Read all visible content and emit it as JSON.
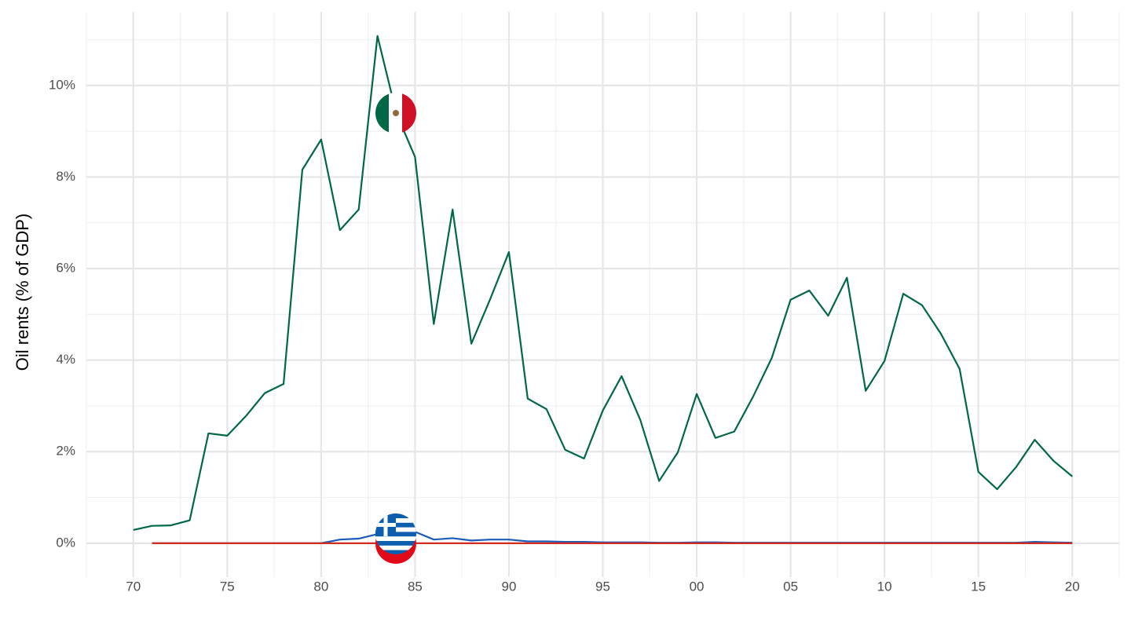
{
  "chart_data": {
    "type": "line",
    "y_label": "Oil rents (% of GDP)",
    "x": [
      1970,
      1971,
      1972,
      1973,
      1974,
      1975,
      1976,
      1977,
      1978,
      1979,
      1980,
      1981,
      1982,
      1983,
      1984,
      1985,
      1986,
      1987,
      1988,
      1989,
      1990,
      1991,
      1992,
      1993,
      1994,
      1995,
      1996,
      1997,
      1998,
      1999,
      2000,
      2001,
      2002,
      2003,
      2004,
      2005,
      2006,
      2007,
      2008,
      2009,
      2010,
      2011,
      2012,
      2013,
      2014,
      2015,
      2016,
      2017,
      2018,
      2019,
      2020
    ],
    "series": [
      {
        "color": "#006847",
        "values": [
          0.29,
          0.38,
          0.39,
          0.5,
          2.4,
          2.35,
          2.78,
          3.28,
          3.48,
          8.16,
          8.82,
          6.84,
          7.29,
          11.08,
          9.4,
          8.44,
          4.79,
          7.29,
          4.36,
          5.33,
          6.36,
          3.16,
          2.93,
          2.04,
          1.85,
          2.9,
          3.65,
          2.69,
          1.36,
          1.99,
          3.26,
          2.3,
          2.44,
          3.2,
          4.05,
          5.32,
          5.52,
          4.97,
          5.8,
          3.33,
          3.98,
          5.45,
          5.2,
          4.58,
          3.81,
          1.56,
          1.18,
          1.66,
          2.26,
          1.8,
          1.46
        ]
      },
      {
        "color": "#1c5cb8",
        "values": [
          null,
          0,
          0,
          0,
          0,
          0,
          0,
          0,
          0,
          0,
          0,
          0.08,
          0.1,
          0.2,
          0.3,
          0.25,
          0.08,
          0.11,
          0.06,
          0.08,
          0.08,
          0.04,
          0.04,
          0.03,
          0.03,
          0.02,
          0.02,
          0.02,
          0.01,
          0.01,
          0.02,
          0.02,
          0.01,
          0.01,
          0.01,
          0.01,
          0.01,
          0.01,
          0.01,
          0.01,
          0.01,
          0.01,
          0.01,
          0.01,
          0.01,
          0.01,
          0.01,
          0.01,
          0.03,
          0.02,
          0.01
        ]
      },
      {
        "color": "#d52b1e",
        "values": [
          null,
          0,
          0,
          0,
          0,
          0,
          0,
          0,
          0,
          0,
          0,
          0,
          0,
          0,
          0,
          0,
          0,
          0,
          0,
          0,
          0,
          0,
          0,
          0,
          0,
          0,
          0,
          0,
          0,
          0,
          0,
          0,
          0,
          0,
          0,
          0,
          0,
          0,
          0,
          0,
          0,
          0,
          0,
          0,
          0,
          0,
          0,
          0,
          0,
          0,
          0
        ]
      }
    ],
    "xlim": [
      1967.5,
      2022.5
    ],
    "ylim": [
      -0.74,
      11.61
    ],
    "xticks": [
      {
        "value": 1970,
        "label": "70"
      },
      {
        "value": 1975,
        "label": "75"
      },
      {
        "value": 1980,
        "label": "80"
      },
      {
        "value": 1985,
        "label": "85"
      },
      {
        "value": 1990,
        "label": "90"
      },
      {
        "value": 1995,
        "label": "95"
      },
      {
        "value": 2000,
        "label": "00"
      },
      {
        "value": 2005,
        "label": "05"
      },
      {
        "value": 2010,
        "label": "10"
      },
      {
        "value": 2015,
        "label": "15"
      },
      {
        "value": 2020,
        "label": "20"
      }
    ],
    "yticks": [
      {
        "value": 0,
        "label": "0%"
      },
      {
        "value": 2,
        "label": "2%"
      },
      {
        "value": 4,
        "label": "4%"
      },
      {
        "value": 6,
        "label": "6%"
      },
      {
        "value": 8,
        "label": "8%"
      },
      {
        "value": 10,
        "label": "10%"
      }
    ],
    "grid": true
  }
}
